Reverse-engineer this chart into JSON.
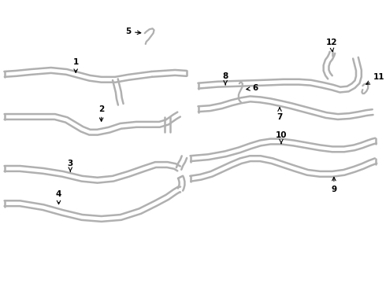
{
  "bg_color": "#ffffff",
  "line_color": "#b0b0b0",
  "line_width": 1.8,
  "text_color": "#000000",
  "arrow_color": "#000000",
  "figsize": [
    4.9,
    3.6
  ],
  "dpi": 100
}
